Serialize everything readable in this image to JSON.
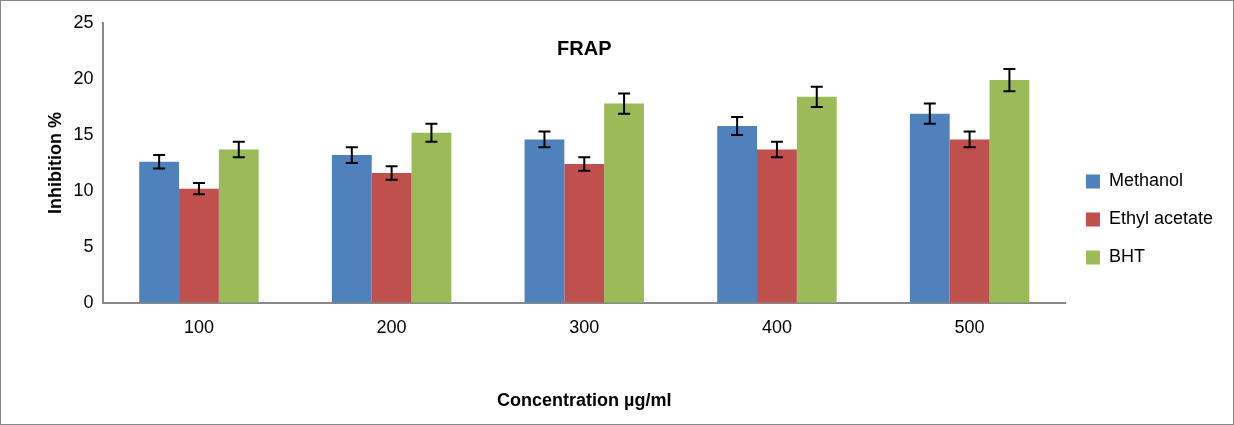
{
  "chart_data": {
    "type": "bar",
    "title": "FRAP",
    "xlabel": "Concentration µg/ml",
    "ylabel": "Inhibition %",
    "categories": [
      "100",
      "200",
      "300",
      "400",
      "500"
    ],
    "series": [
      {
        "name": "Methanol",
        "color": "#4f81bd",
        "values": [
          12.6,
          13.2,
          14.6,
          15.8,
          16.9
        ],
        "errors": [
          0.6,
          0.7,
          0.7,
          0.8,
          0.9
        ]
      },
      {
        "name": "Ethyl acetate",
        "color": "#c0504d",
        "values": [
          10.2,
          11.6,
          12.4,
          13.7,
          14.6
        ],
        "errors": [
          0.5,
          0.6,
          0.6,
          0.7,
          0.7
        ]
      },
      {
        "name": "BHT",
        "color": "#9bbb59",
        "values": [
          13.7,
          15.2,
          17.8,
          18.4,
          19.9
        ],
        "errors": [
          0.7,
          0.8,
          0.9,
          0.9,
          1.0
        ]
      }
    ],
    "ylim": [
      0,
      25
    ],
    "yticks": [
      0,
      5,
      10,
      15,
      20,
      25
    ],
    "grid": false,
    "legend": "right"
  }
}
